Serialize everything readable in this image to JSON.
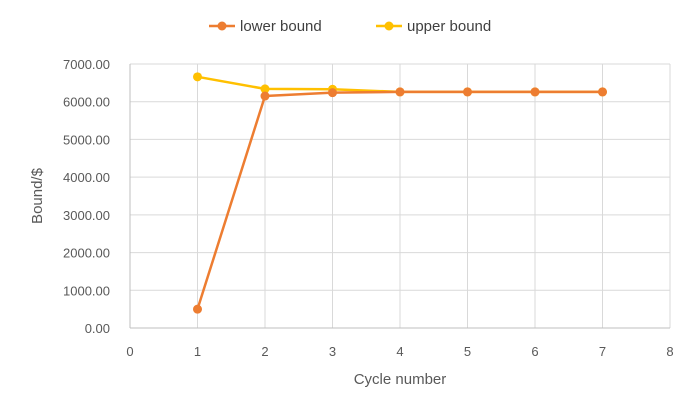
{
  "chart_data": {
    "type": "line",
    "title": "",
    "xlabel": "Cycle number",
    "ylabel": "Bound/$",
    "xlim": [
      0,
      8
    ],
    "ylim": [
      0,
      7000
    ],
    "x_ticks": [
      0,
      1,
      2,
      3,
      4,
      5,
      6,
      7,
      8
    ],
    "x_tick_labels": [
      "0",
      "1",
      "2",
      "3",
      "4",
      "5",
      "6",
      "7",
      "8"
    ],
    "y_ticks": [
      0,
      1000,
      2000,
      3000,
      4000,
      5000,
      6000,
      7000
    ],
    "y_tick_labels": [
      "0.00",
      "1000.00",
      "2000.00",
      "3000.00",
      "4000.00",
      "5000.00",
      "6000.00",
      "7000.00"
    ],
    "grid": true,
    "legend_position": "top",
    "series": [
      {
        "name": "lower bound",
        "color": "#ED7D31",
        "x": [
          1,
          2,
          3,
          4,
          5,
          6,
          7
        ],
        "values": [
          500,
          6150,
          6240,
          6260,
          6260,
          6260,
          6260
        ]
      },
      {
        "name": "upper bound",
        "color": "#FFC000",
        "x": [
          1,
          2,
          3,
          4,
          5,
          6,
          7
        ],
        "values": [
          6660,
          6340,
          6330,
          6260,
          6260,
          6260,
          6260
        ]
      }
    ]
  }
}
